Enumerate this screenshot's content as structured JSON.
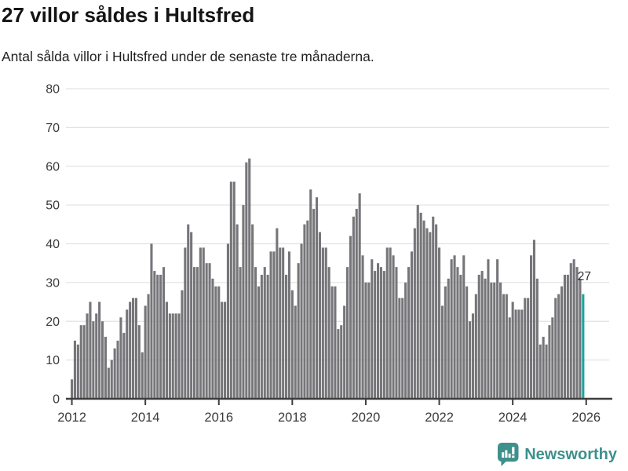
{
  "header": {
    "title": "27 villor såldes i Hultsfred",
    "subtitle": "Antal sålda villor i Hultsfred under de senaste tre månaderna."
  },
  "branding": {
    "logo_text": "Newsworthy",
    "logo_icon": "newsworthy-bars-speech-bubble",
    "logo_color": "#3E908C"
  },
  "colors": {
    "bar": "#76767A",
    "highlight": "#1BA59E",
    "grid": "#E3E3E3",
    "axis": "#3E3E3E",
    "tick_text": "#3A3A3A",
    "annotation_text": "#333333"
  },
  "chart_data": {
    "type": "bar",
    "title": "27 villor såldes i Hultsfred",
    "subtitle": "Antal sålda villor i Hultsfred under de senaste tre månaderna.",
    "frequency": "monthly",
    "x_start": "2012-01",
    "x_end": "2025-12",
    "x_tick_labels": [
      "2012",
      "2014",
      "2016",
      "2018",
      "2020",
      "2022",
      "2024",
      "2026"
    ],
    "y_ticks": [
      0,
      10,
      20,
      30,
      40,
      50,
      60,
      70,
      80
    ],
    "ylim": [
      0,
      80
    ],
    "grid": "horizontal",
    "legend": "none",
    "highlight_last_bar": true,
    "highlight_value_label": "27",
    "values": [
      5,
      15,
      14,
      19,
      19,
      22,
      25,
      20,
      22,
      25,
      20,
      16,
      8,
      10,
      13,
      15,
      21,
      17,
      23,
      25,
      26,
      26,
      19,
      12,
      24,
      27,
      40,
      33,
      32,
      32,
      34,
      25,
      22,
      22,
      22,
      22,
      28,
      39,
      45,
      43,
      34,
      34,
      39,
      39,
      35,
      35,
      31,
      29,
      29,
      25,
      25,
      40,
      56,
      56,
      45,
      34,
      50,
      61,
      62,
      45,
      34,
      29,
      32,
      34,
      32,
      38,
      38,
      44,
      39,
      39,
      32,
      38,
      28,
      24,
      35,
      40,
      45,
      46,
      54,
      49,
      52,
      43,
      39,
      39,
      34,
      29,
      29,
      18,
      19,
      24,
      34,
      42,
      47,
      49,
      53,
      37,
      30,
      30,
      36,
      33,
      35,
      34,
      33,
      39,
      39,
      37,
      34,
      26,
      26,
      30,
      34,
      38,
      44,
      50,
      48,
      46,
      44,
      43,
      47,
      45,
      39,
      24,
      29,
      31,
      36,
      37,
      34,
      32,
      37,
      29,
      20,
      22,
      27,
      32,
      33,
      31,
      36,
      30,
      30,
      36,
      30,
      27,
      27,
      21,
      25,
      23,
      23,
      23,
      26,
      26,
      37,
      41,
      31,
      14,
      16,
      14,
      19,
      21,
      26,
      27,
      29,
      32,
      32,
      35,
      36,
      34,
      31,
      27
    ]
  }
}
